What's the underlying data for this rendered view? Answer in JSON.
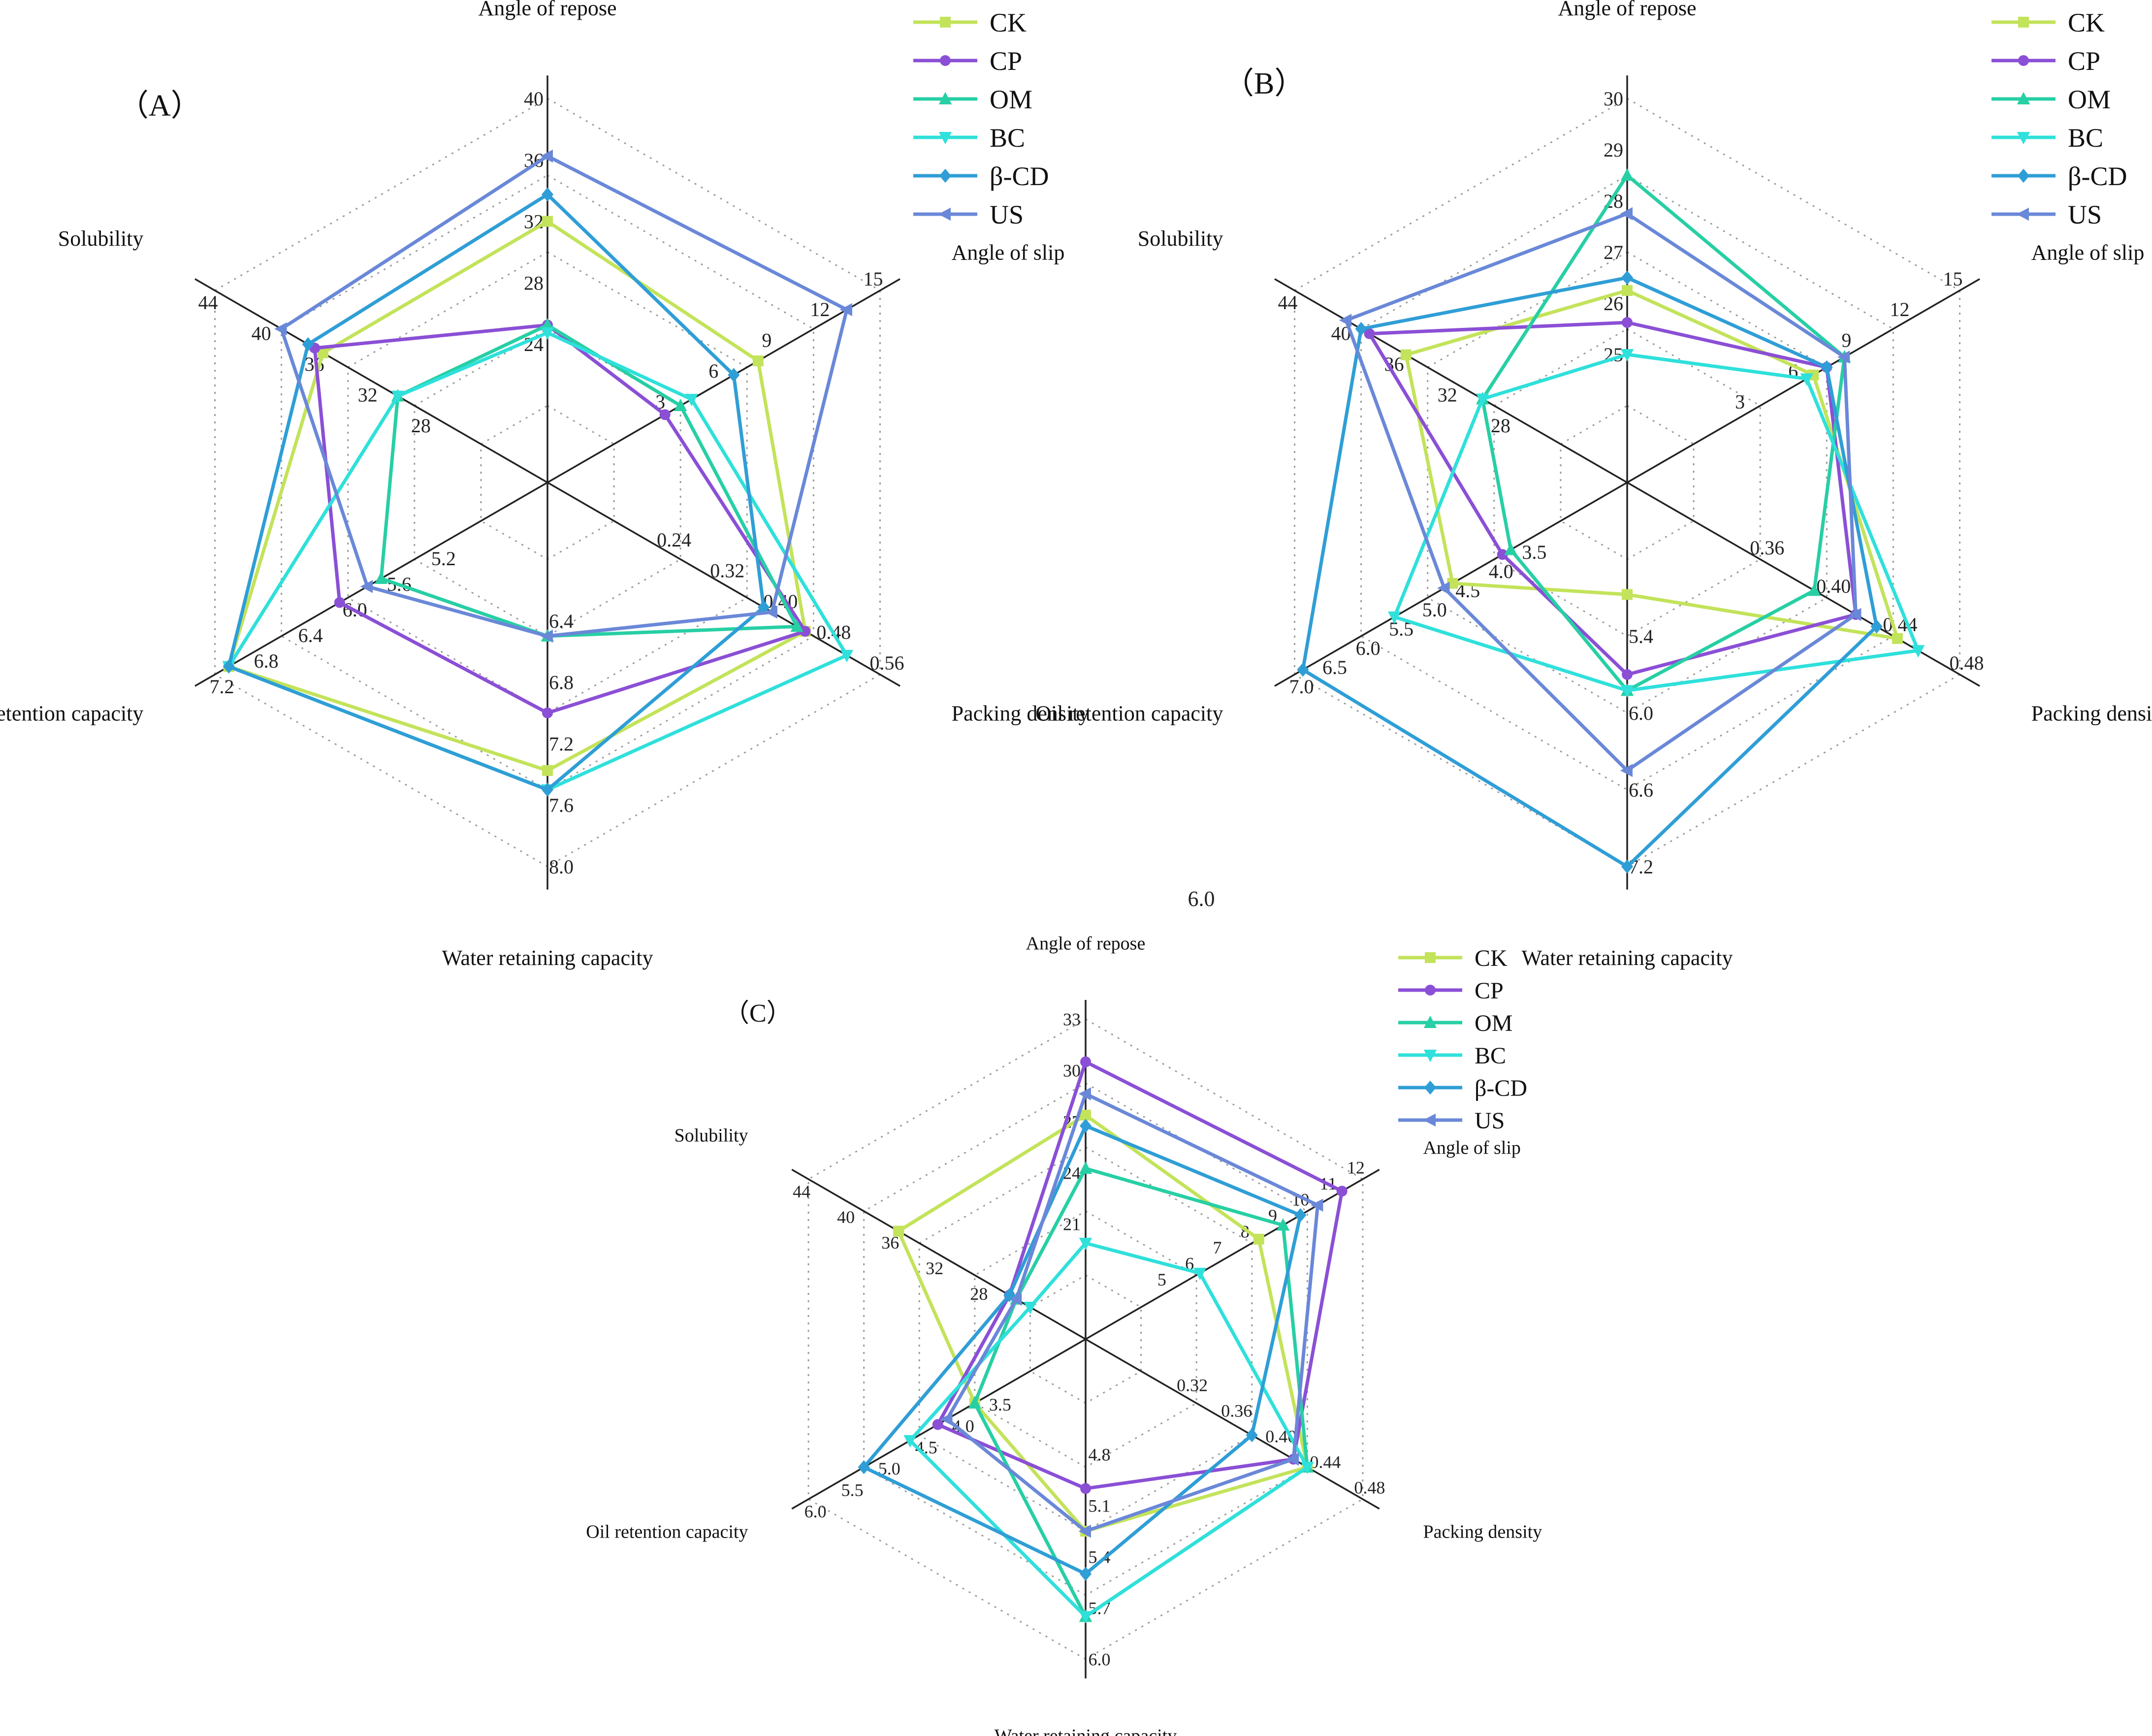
{
  "series_colors": {
    "CK": "#c3e35a",
    "CP": "#8b4fd6",
    "OM": "#27cfa4",
    "BC": "#2fe0db",
    "β-CD": "#2f9ed6",
    "US": "#6a88d8"
  },
  "stray_text": "6.0",
  "chart_data": [
    {
      "type": "radar",
      "panel": "（A）",
      "axes": [
        {
          "label": "Angle of repose",
          "min": 20,
          "max": 40,
          "ticks": [
            "24",
            "28",
            "32",
            "36",
            "40"
          ]
        },
        {
          "label": "Angle of slip",
          "min": 0,
          "max": 15,
          "ticks": [
            "3",
            "6",
            "9",
            "12",
            "15"
          ]
        },
        {
          "label": "Packing density",
          "min": 0.16,
          "max": 0.56,
          "ticks": [
            "0.24",
            "0.32",
            "0.40",
            "0.48",
            "0.56"
          ]
        },
        {
          "label": "Water retaining capacity",
          "min": 6.0,
          "max": 8.0,
          "ticks": [
            "6.4",
            "6.8",
            "7.2",
            "7.6",
            "8.0"
          ]
        },
        {
          "label": "Oil retention capacity",
          "min": 4.8,
          "max": 7.2,
          "ticks": [
            "5.2",
            "5.6",
            "6.0",
            "6.4",
            "6.8",
            "7.2"
          ]
        },
        {
          "label": "Solubility",
          "min": 24,
          "max": 44,
          "ticks": [
            "28",
            "32",
            "36",
            "40",
            "44"
          ]
        }
      ],
      "series": [
        {
          "name": "CK",
          "values": [
            33.6,
            9.5,
            0.47,
            7.5,
            7.1,
            37.5
          ]
        },
        {
          "name": "CP",
          "values": [
            28.2,
            5.3,
            0.47,
            7.2,
            6.3,
            38.0
          ]
        },
        {
          "name": "OM",
          "values": [
            28.2,
            6.0,
            0.46,
            6.8,
            6.0,
            33.0
          ]
        },
        {
          "name": "BC",
          "values": [
            27.8,
            6.5,
            0.52,
            7.6,
            7.1,
            33.0
          ]
        },
        {
          "name": "β-CD",
          "values": [
            35.0,
            8.4,
            0.42,
            7.6,
            7.1,
            38.4
          ]
        },
        {
          "name": "US",
          "values": [
            37.0,
            13.5,
            0.43,
            6.8,
            6.1,
            40.0
          ]
        }
      ]
    },
    {
      "type": "radar",
      "panel": "（B）",
      "axes": [
        {
          "label": "Angle of repose",
          "min": 24,
          "max": 30,
          "ticks": [
            "25",
            "26",
            "27",
            "28",
            "29",
            "30"
          ]
        },
        {
          "label": "Angle of slip",
          "min": 0,
          "max": 15,
          "ticks": [
            "3",
            "6",
            "9",
            "12",
            "15"
          ]
        },
        {
          "label": "Packing density",
          "min": 0.32,
          "max": 0.48,
          "ticks": [
            "0.36",
            "0.40",
            "0.44",
            "0.48"
          ]
        },
        {
          "label": "Water retaining capacity",
          "min": 4.8,
          "max": 7.2,
          "ticks": [
            "5.4",
            "6.0",
            "6.6",
            "7.2"
          ]
        },
        {
          "label": "Oil retention capacity",
          "min": 3.0,
          "max": 7.0,
          "ticks": [
            "3.5",
            "4.0",
            "4.5",
            "5.0",
            "5.5",
            "6.0",
            "6.5",
            "7.0"
          ]
        },
        {
          "label": "Solubility",
          "min": 24,
          "max": 44,
          "ticks": [
            "28",
            "32",
            "36",
            "40",
            "44"
          ]
        }
      ],
      "series": [
        {
          "name": "CK",
          "values": [
            27.0,
            8.4,
            0.45,
            5.5,
            5.1,
            37.3
          ]
        },
        {
          "name": "CP",
          "values": [
            26.5,
            9.0,
            0.43,
            6.0,
            4.5,
            39.5
          ]
        },
        {
          "name": "OM",
          "values": [
            28.8,
            9.8,
            0.41,
            6.1,
            4.4,
            32.7
          ]
        },
        {
          "name": "BC",
          "values": [
            26.0,
            8.1,
            0.46,
            6.1,
            5.8,
            32.7
          ]
        },
        {
          "name": "β-CD",
          "values": [
            27.2,
            9.0,
            0.44,
            7.2,
            6.9,
            40.0
          ]
        },
        {
          "name": "US",
          "values": [
            28.2,
            9.8,
            0.43,
            6.6,
            5.2,
            40.9
          ]
        }
      ]
    },
    {
      "type": "radar",
      "panel": "（C）",
      "axes": [
        {
          "label": "Angle of repose",
          "min": 18,
          "max": 33,
          "ticks": [
            "21",
            "24",
            "27",
            "30",
            "33"
          ]
        },
        {
          "label": "Angle of slip",
          "min": 4,
          "max": 12,
          "ticks": [
            "5",
            "6",
            "7",
            "8",
            "9",
            "10",
            "11",
            "12"
          ]
        },
        {
          "label": "Packing density",
          "min": 0.28,
          "max": 0.48,
          "ticks": [
            "0.32",
            "0.36",
            "0.40",
            "0.44",
            "0.48"
          ]
        },
        {
          "label": "Water retaining capacity",
          "min": 4.5,
          "max": 6.0,
          "ticks": [
            "4.8",
            "5.1",
            "5.4",
            "5.7",
            "6.0"
          ]
        },
        {
          "label": "Oil retention capacity",
          "min": 3.0,
          "max": 6.0,
          "ticks": [
            "3.5",
            "4.0",
            "4.5",
            "5.0",
            "5.5",
            "6.0"
          ]
        },
        {
          "label": "Solubility",
          "min": 24,
          "max": 44,
          "ticks": [
            "28",
            "32",
            "36",
            "40",
            "44"
          ]
        }
      ],
      "series": [
        {
          "name": "CK",
          "values": [
            28.5,
            9.0,
            0.44,
            5.4,
            4.2,
            37.5
          ]
        },
        {
          "name": "CP",
          "values": [
            31.0,
            11.4,
            0.43,
            5.2,
            4.6,
            29.5
          ]
        },
        {
          "name": "OM",
          "values": [
            26.0,
            9.7,
            0.44,
            5.8,
            4.2,
            29.0
          ]
        },
        {
          "name": "BC",
          "values": [
            22.5,
            7.3,
            0.44,
            5.8,
            4.9,
            28.0
          ]
        },
        {
          "name": "β-CD",
          "values": [
            28.0,
            10.2,
            0.4,
            5.6,
            5.4,
            29.5
          ]
        },
        {
          "name": "US",
          "values": [
            29.5,
            10.7,
            0.43,
            5.4,
            4.5,
            29.0
          ]
        }
      ]
    }
  ]
}
